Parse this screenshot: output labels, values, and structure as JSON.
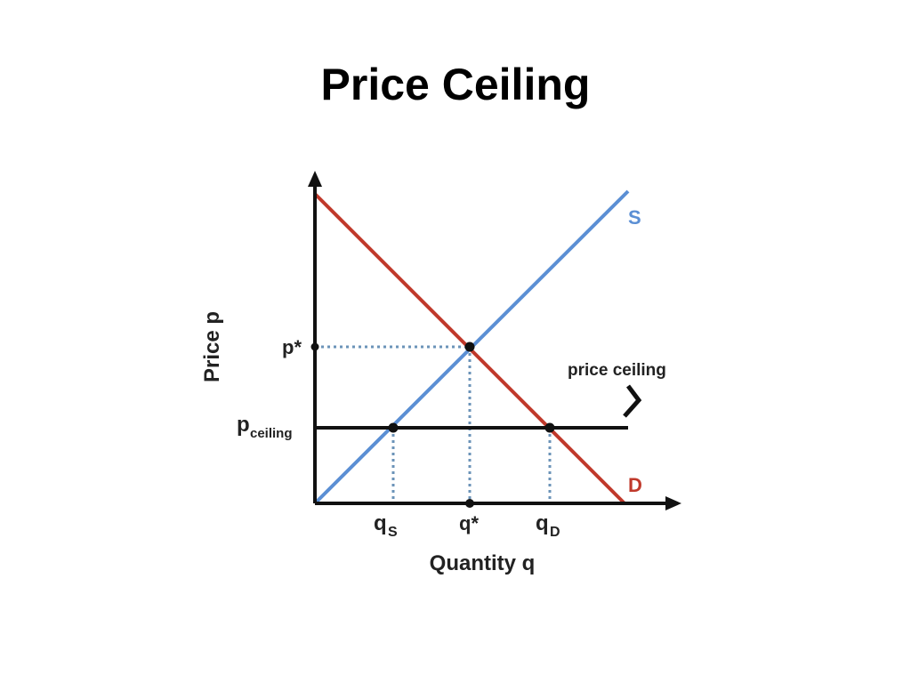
{
  "slide": {
    "title": "Price Ceiling"
  },
  "diagram": {
    "x_axis_label": "Quantity q",
    "y_axis_label": "Price p",
    "supply_label": "S",
    "demand_label": "D",
    "ceiling_annotation": "price ceiling",
    "equilibrium_price_label": "p*",
    "ceiling_price_label_main": "p",
    "ceiling_price_label_sub": "ceiling",
    "qs_label_main": "q",
    "qs_label_sub": "S",
    "q_star_label": "q*",
    "qd_label_main": "q",
    "qd_label_sub": "D",
    "colors": {
      "supply": "#5b8fd4",
      "demand": "#c0392b",
      "axes": "#111111",
      "guides": "#6b93b8"
    }
  }
}
